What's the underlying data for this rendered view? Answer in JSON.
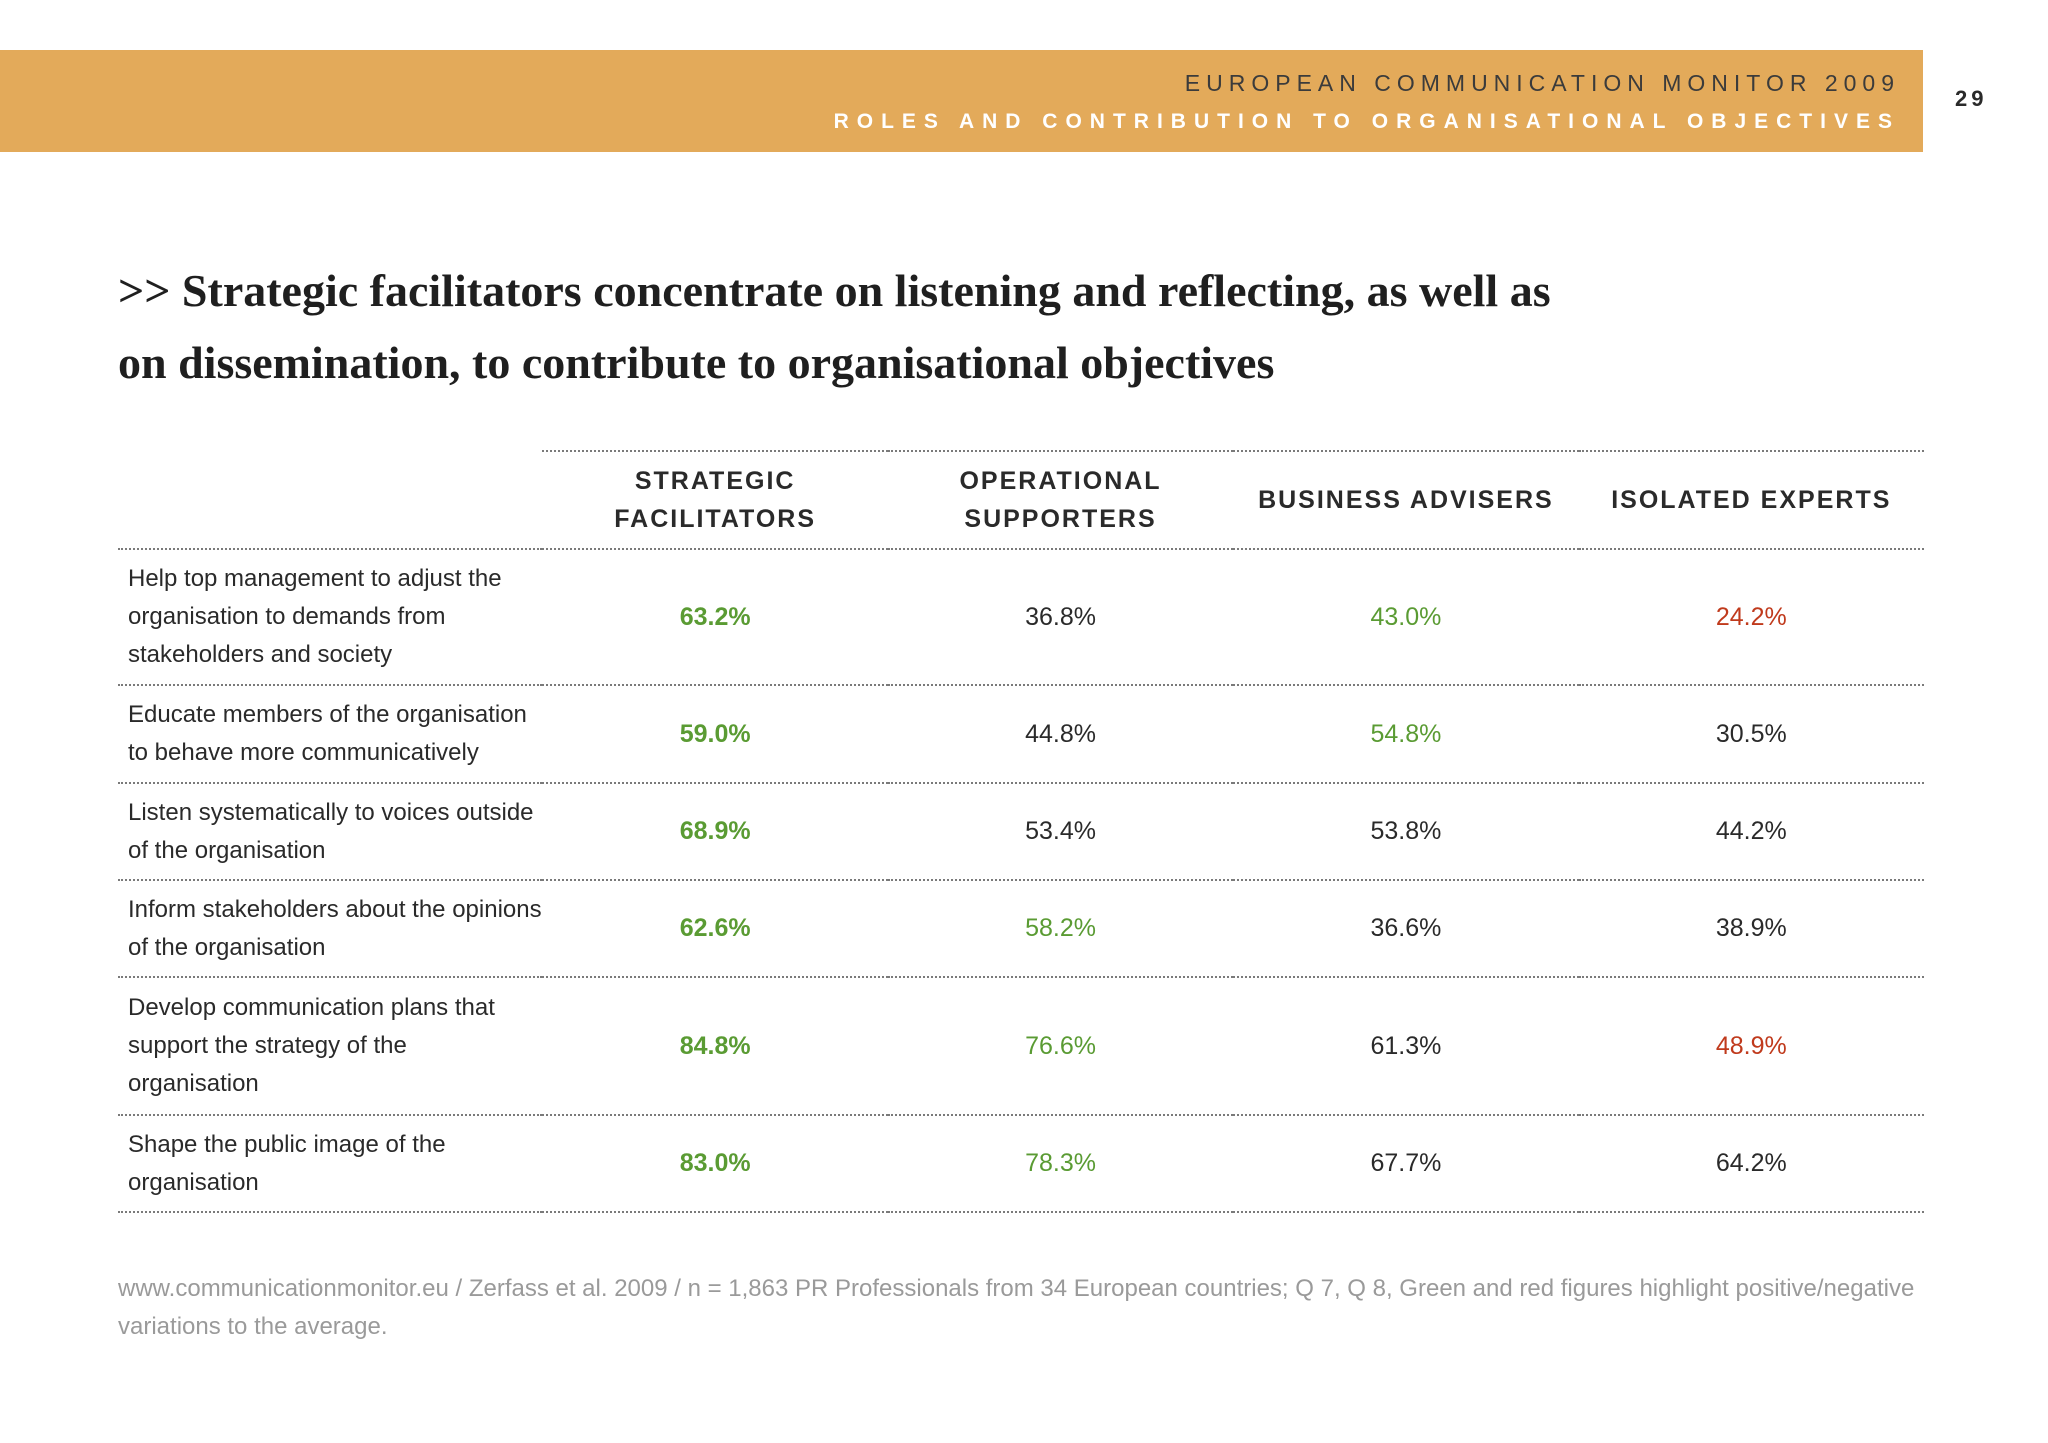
{
  "header": {
    "line1": "EUROPEAN COMMUNICATION MONITOR 2009",
    "line2": "ROLES AND CONTRIBUTION TO ORGANISATIONAL OBJECTIVES",
    "page_number": "29",
    "band_color": "#e3aa5a"
  },
  "headline": {
    "line1": ">> Strategic facilitators concentrate on listening and reflecting, as well as",
    "line2": "on dissemination, to contribute to organisational objectives"
  },
  "table": {
    "columns": [
      {
        "line1": "STRATEGIC",
        "line2": "FACILITATORS"
      },
      {
        "line1": "OPERATIONAL",
        "line2": "SUPPORTERS"
      },
      {
        "line1": "BUSINESS ADVISERS",
        "line2": ""
      },
      {
        "line1": "ISOLATED EXPERTS",
        "line2": ""
      }
    ],
    "rows": [
      {
        "label_lines": [
          "Help top management to adjust the",
          "organisation to demands from",
          "stakeholders and society"
        ],
        "values": [
          {
            "text": "63.2%",
            "status": "positive"
          },
          {
            "text": "36.8%",
            "status": "neutral"
          },
          {
            "text": "43.0%",
            "status": "positive"
          },
          {
            "text": "24.2%",
            "status": "negative"
          }
        ]
      },
      {
        "label_lines": [
          "Educate members of the organisation",
          "to behave more communicatively"
        ],
        "values": [
          {
            "text": "59.0%",
            "status": "positive"
          },
          {
            "text": "44.8%",
            "status": "neutral"
          },
          {
            "text": "54.8%",
            "status": "positive"
          },
          {
            "text": "30.5%",
            "status": "neutral"
          }
        ]
      },
      {
        "label_lines": [
          "Listen systematically to voices outside",
          "of the organisation"
        ],
        "values": [
          {
            "text": "68.9%",
            "status": "positive"
          },
          {
            "text": "53.4%",
            "status": "neutral"
          },
          {
            "text": "53.8%",
            "status": "neutral"
          },
          {
            "text": "44.2%",
            "status": "neutral"
          }
        ]
      },
      {
        "label_lines": [
          "Inform stakeholders about the opinions",
          "of the organisation"
        ],
        "values": [
          {
            "text": "62.6%",
            "status": "positive"
          },
          {
            "text": "58.2%",
            "status": "positive"
          },
          {
            "text": "36.6%",
            "status": "neutral"
          },
          {
            "text": "38.9%",
            "status": "neutral"
          }
        ]
      },
      {
        "label_lines": [
          "Develop communication plans that",
          "support the strategy of the organisation"
        ],
        "values": [
          {
            "text": "84.8%",
            "status": "positive"
          },
          {
            "text": "76.6%",
            "status": "positive"
          },
          {
            "text": "61.3%",
            "status": "neutral"
          },
          {
            "text": "48.9%",
            "status": "negative"
          }
        ]
      },
      {
        "label_lines": [
          "Shape the public image of the",
          "organisation"
        ],
        "values": [
          {
            "text": "83.0%",
            "status": "positive"
          },
          {
            "text": "78.3%",
            "status": "positive"
          },
          {
            "text": "67.7%",
            "status": "neutral"
          },
          {
            "text": "64.2%",
            "status": "neutral"
          }
        ]
      }
    ],
    "colors": {
      "positive": "#5a9b33",
      "negative": "#c03a1c",
      "neutral": "#2a2a2a"
    }
  },
  "footnote": "www.communicationmonitor.eu / Zerfass et al. 2009 / n = 1,863 PR Professionals from 34 European countries; Q 7, Q 8, Green and red figures highlight positive/negative variations to the average."
}
